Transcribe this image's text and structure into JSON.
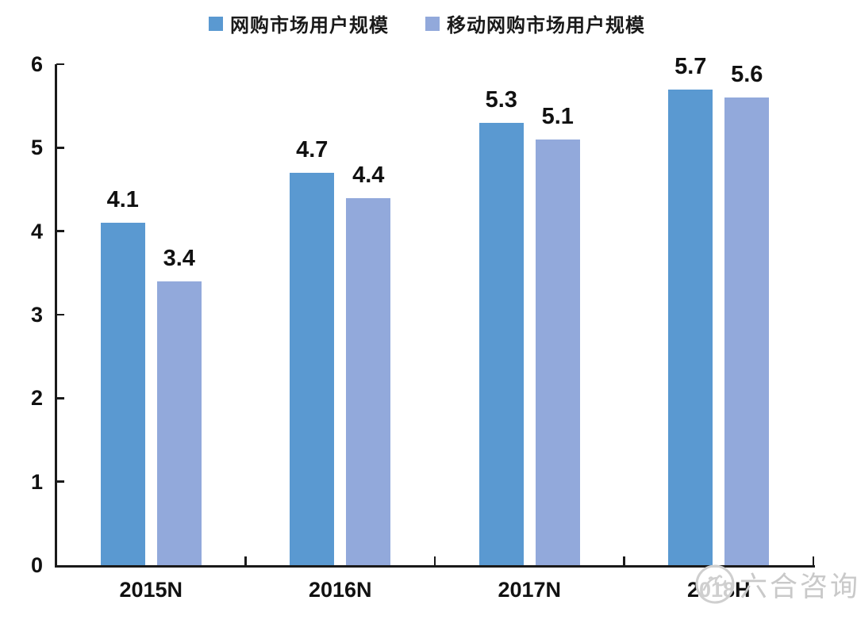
{
  "chart_data": {
    "type": "bar",
    "title": "",
    "categories": [
      "2015N",
      "2016N",
      "2017N",
      "2018H"
    ],
    "series": [
      {
        "name": "网购市场用户规模",
        "color": "#5A99D1",
        "values": [
          4.1,
          4.7,
          5.3,
          5.7
        ]
      },
      {
        "name": "移动网购市场用户规模",
        "color": "#92A9DB",
        "values": [
          3.4,
          4.4,
          5.1,
          5.6
        ]
      }
    ],
    "data_labels": [
      "4.1",
      "4.7",
      "5.3",
      "5.7",
      "3.4",
      "4.4",
      "5.1",
      "5.6"
    ],
    "ylim": [
      0,
      6
    ],
    "yticks": [
      0,
      1,
      2,
      3,
      4,
      5,
      6
    ],
    "xlabel": "",
    "ylabel": "",
    "grid": "off",
    "legend_position": "top",
    "tick_direction": "in",
    "axis_color": "#1a1a1a",
    "text_color": "#111111"
  },
  "watermark": {
    "icon": "swan-circle-logo",
    "text": "六合咨询",
    "color": "#c9c9c9"
  }
}
